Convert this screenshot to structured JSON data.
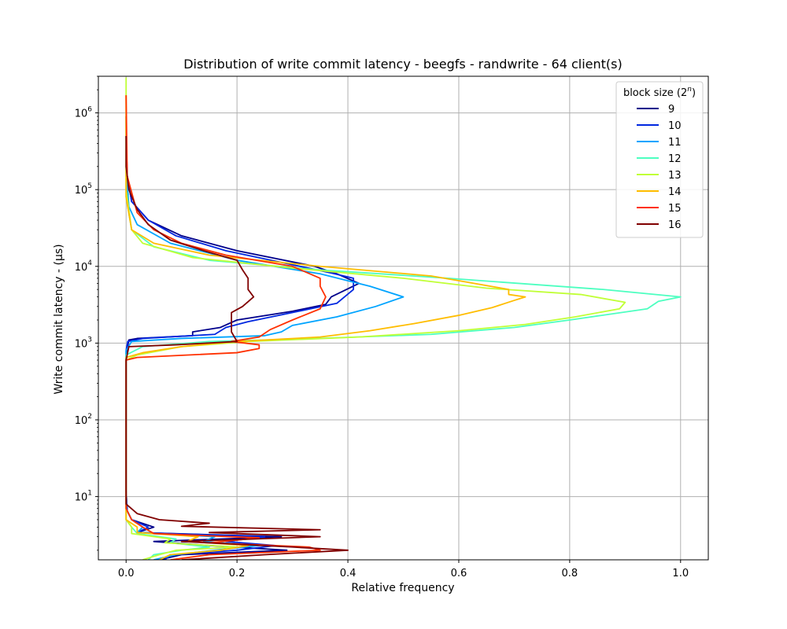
{
  "chart_data": {
    "type": "line",
    "title": "Distribution of write commit latency - beegfs - randwrite - 64 client(s)",
    "xlabel": "Relative frequency",
    "ylabel": "Write commit latency - (μs)",
    "yscale": "log",
    "xlim": [
      -0.05,
      1.05
    ],
    "ylim": [
      1.5,
      3000000
    ],
    "grid": true,
    "x_ticks": [
      0.0,
      0.2,
      0.4,
      0.6,
      0.8,
      1.0
    ],
    "x_tick_labels": [
      "0.0",
      "0.2",
      "0.4",
      "0.6",
      "0.8",
      "1.0"
    ],
    "y_ticks": [
      {
        "value": 10,
        "base": "10",
        "exp": "1"
      },
      {
        "value": 100,
        "base": "10",
        "exp": "2"
      },
      {
        "value": 1000,
        "base": "10",
        "exp": "3"
      },
      {
        "value": 10000,
        "base": "10",
        "exp": "4"
      },
      {
        "value": 100000,
        "base": "10",
        "exp": "5"
      },
      {
        "value": 1000000,
        "base": "10",
        "exp": "6"
      }
    ],
    "legend": {
      "title_prefix": "block size (2",
      "title_sup": "n",
      "title_suffix": ")",
      "location": "upper right"
    },
    "series": [
      {
        "name": "9",
        "color": "#00008b",
        "points": [
          [
            0.06,
            1.5
          ],
          [
            0.1,
            1.75
          ],
          [
            0.29,
            2.0
          ],
          [
            0.15,
            2.3
          ],
          [
            0.05,
            2.6
          ],
          [
            0.28,
            3.0
          ],
          [
            0.02,
            3.4
          ],
          [
            0.05,
            4.0
          ],
          [
            0.01,
            5.0
          ],
          [
            0.002,
            6.5
          ],
          [
            0.0,
            12
          ],
          [
            0.0,
            100
          ],
          [
            0.0,
            700
          ],
          [
            0.005,
            1100
          ],
          [
            0.02,
            1150
          ],
          [
            0.12,
            1250
          ],
          [
            0.12,
            1400
          ],
          [
            0.17,
            1600
          ],
          [
            0.2,
            2000
          ],
          [
            0.3,
            2600
          ],
          [
            0.36,
            3200
          ],
          [
            0.37,
            4000
          ],
          [
            0.42,
            6000
          ],
          [
            0.38,
            8000
          ],
          [
            0.34,
            10000
          ],
          [
            0.2,
            16000
          ],
          [
            0.1,
            25000
          ],
          [
            0.04,
            40000
          ],
          [
            0.01,
            70000
          ],
          [
            0.002,
            150000
          ],
          [
            0.0,
            500000
          ],
          [
            0.0,
            900000
          ]
        ]
      },
      {
        "name": "10",
        "color": "#0027e0",
        "points": [
          [
            0.07,
            1.5
          ],
          [
            0.08,
            1.75
          ],
          [
            0.2,
            2.0
          ],
          [
            0.27,
            2.3
          ],
          [
            0.18,
            2.6
          ],
          [
            0.25,
            3.0
          ],
          [
            0.02,
            3.4
          ],
          [
            0.04,
            4.0
          ],
          [
            0.01,
            5.0
          ],
          [
            0.002,
            6.5
          ],
          [
            0.0,
            12
          ],
          [
            0.0,
            100
          ],
          [
            0.0,
            800
          ],
          [
            0.003,
            1050
          ],
          [
            0.03,
            1150
          ],
          [
            0.16,
            1300
          ],
          [
            0.18,
            1600
          ],
          [
            0.22,
            1900
          ],
          [
            0.3,
            2500
          ],
          [
            0.38,
            3300
          ],
          [
            0.41,
            5000
          ],
          [
            0.41,
            7000
          ],
          [
            0.37,
            8200
          ],
          [
            0.3,
            10500
          ],
          [
            0.18,
            16000
          ],
          [
            0.09,
            25000
          ],
          [
            0.04,
            40000
          ],
          [
            0.01,
            70000
          ],
          [
            0.002,
            150000
          ],
          [
            0.0,
            500000
          ]
        ]
      },
      {
        "name": "11",
        "color": "#00a4ff",
        "points": [
          [
            0.05,
            1.5
          ],
          [
            0.09,
            1.75
          ],
          [
            0.16,
            2.0
          ],
          [
            0.24,
            2.3
          ],
          [
            0.14,
            2.6
          ],
          [
            0.16,
            3.0
          ],
          [
            0.02,
            3.4
          ],
          [
            0.03,
            4.0
          ],
          [
            0.01,
            5.0
          ],
          [
            0.0,
            7
          ],
          [
            0.0,
            100
          ],
          [
            0.0,
            800
          ],
          [
            0.01,
            1050
          ],
          [
            0.1,
            1150
          ],
          [
            0.25,
            1250
          ],
          [
            0.28,
            1400
          ],
          [
            0.3,
            1700
          ],
          [
            0.38,
            2200
          ],
          [
            0.45,
            3000
          ],
          [
            0.5,
            4000
          ],
          [
            0.44,
            5500
          ],
          [
            0.35,
            8000
          ],
          [
            0.2,
            12000
          ],
          [
            0.08,
            20000
          ],
          [
            0.02,
            35000
          ],
          [
            0.005,
            60000
          ],
          [
            0.0,
            200000
          ]
        ]
      },
      {
        "name": "12",
        "color": "#4dffc0",
        "points": [
          [
            0.04,
            1.5
          ],
          [
            0.05,
            1.75
          ],
          [
            0.1,
            2.0
          ],
          [
            0.15,
            2.2
          ],
          [
            0.08,
            2.5
          ],
          [
            0.09,
            2.8
          ],
          [
            0.02,
            3.3
          ],
          [
            0.01,
            4.0
          ],
          [
            0.0,
            5
          ],
          [
            0.0,
            100
          ],
          [
            0.0,
            700
          ],
          [
            0.03,
            900
          ],
          [
            0.15,
            1050
          ],
          [
            0.3,
            1120
          ],
          [
            0.55,
            1300
          ],
          [
            0.7,
            1600
          ],
          [
            0.8,
            2000
          ],
          [
            0.94,
            2800
          ],
          [
            0.96,
            3500
          ],
          [
            1.0,
            4000
          ],
          [
            0.86,
            5000
          ],
          [
            0.58,
            7000
          ],
          [
            0.35,
            9000
          ],
          [
            0.15,
            12000
          ],
          [
            0.05,
            18000
          ],
          [
            0.01,
            30000
          ],
          [
            0.0,
            80000
          ],
          [
            0.0,
            500000
          ]
        ]
      },
      {
        "name": "13",
        "color": "#c0ff36",
        "points": [
          [
            0.03,
            1.5
          ],
          [
            0.06,
            1.75
          ],
          [
            0.09,
            2.0
          ],
          [
            0.2,
            2.2
          ],
          [
            0.07,
            2.5
          ],
          [
            0.08,
            2.8
          ],
          [
            0.01,
            3.3
          ],
          [
            0.01,
            4.0
          ],
          [
            0.0,
            5
          ],
          [
            0.0,
            100
          ],
          [
            0.0,
            600
          ],
          [
            0.02,
            700
          ],
          [
            0.1,
            900
          ],
          [
            0.22,
            1050
          ],
          [
            0.42,
            1200
          ],
          [
            0.6,
            1450
          ],
          [
            0.72,
            1750
          ],
          [
            0.81,
            2200
          ],
          [
            0.89,
            2800
          ],
          [
            0.9,
            3400
          ],
          [
            0.82,
            4300
          ],
          [
            0.65,
            5200
          ],
          [
            0.5,
            7000
          ],
          [
            0.3,
            9500
          ],
          [
            0.12,
            13000
          ],
          [
            0.03,
            20000
          ],
          [
            0.01,
            30000
          ],
          [
            0.0,
            100000
          ],
          [
            0.0,
            2900000
          ]
        ]
      },
      {
        "name": "14",
        "color": "#ffbd00",
        "points": [
          [
            0.06,
            1.5
          ],
          [
            0.08,
            1.75
          ],
          [
            0.17,
            2.0
          ],
          [
            0.22,
            2.3
          ],
          [
            0.11,
            2.6
          ],
          [
            0.13,
            3.0
          ],
          [
            0.02,
            3.4
          ],
          [
            0.02,
            4.0
          ],
          [
            0.0,
            5
          ],
          [
            0.0,
            100
          ],
          [
            0.0,
            650
          ],
          [
            0.03,
            750
          ],
          [
            0.1,
            900
          ],
          [
            0.2,
            1050
          ],
          [
            0.35,
            1200
          ],
          [
            0.44,
            1450
          ],
          [
            0.52,
            1800
          ],
          [
            0.6,
            2300
          ],
          [
            0.66,
            2900
          ],
          [
            0.7,
            3600
          ],
          [
            0.72,
            4000
          ],
          [
            0.69,
            4300
          ],
          [
            0.69,
            5000
          ],
          [
            0.6,
            6500
          ],
          [
            0.55,
            7500
          ],
          [
            0.35,
            10000
          ],
          [
            0.15,
            14000
          ],
          [
            0.05,
            20000
          ],
          [
            0.01,
            30000
          ],
          [
            0.0,
            80000
          ],
          [
            0.0,
            1700000
          ]
        ]
      },
      {
        "name": "15",
        "color": "#ff3000",
        "points": [
          [
            0.08,
            1.5
          ],
          [
            0.15,
            1.75
          ],
          [
            0.35,
            2.0
          ],
          [
            0.33,
            2.2
          ],
          [
            0.15,
            2.5
          ],
          [
            0.24,
            2.9
          ],
          [
            0.05,
            3.3
          ],
          [
            0.03,
            4.0
          ],
          [
            0.01,
            5.0
          ],
          [
            0.0,
            7
          ],
          [
            0.0,
            100
          ],
          [
            0.0,
            600
          ],
          [
            0.02,
            650
          ],
          [
            0.2,
            750
          ],
          [
            0.24,
            850
          ],
          [
            0.24,
            950
          ],
          [
            0.19,
            1050
          ],
          [
            0.24,
            1200
          ],
          [
            0.26,
            1500
          ],
          [
            0.3,
            2000
          ],
          [
            0.35,
            2800
          ],
          [
            0.36,
            4000
          ],
          [
            0.35,
            5500
          ],
          [
            0.35,
            7000
          ],
          [
            0.3,
            10000
          ],
          [
            0.18,
            14000
          ],
          [
            0.1,
            20000
          ],
          [
            0.05,
            30000
          ],
          [
            0.02,
            50000
          ],
          [
            0.002,
            150000
          ],
          [
            0.0,
            1700000
          ]
        ]
      },
      {
        "name": "16",
        "color": "#800000",
        "points": [
          [
            0.1,
            1.5
          ],
          [
            0.25,
            1.75
          ],
          [
            0.4,
            2.0
          ],
          [
            0.3,
            2.2
          ],
          [
            0.1,
            2.6
          ],
          [
            0.35,
            3.0
          ],
          [
            0.15,
            3.4
          ],
          [
            0.35,
            3.7
          ],
          [
            0.1,
            4.1
          ],
          [
            0.15,
            4.5
          ],
          [
            0.06,
            5.0
          ],
          [
            0.02,
            6.0
          ],
          [
            0.0,
            8.0
          ],
          [
            0.0,
            12
          ],
          [
            0.0,
            100
          ],
          [
            0.0,
            600
          ],
          [
            0.005,
            900
          ],
          [
            0.09,
            950
          ],
          [
            0.2,
            1050
          ],
          [
            0.19,
            1400
          ],
          [
            0.19,
            1900
          ],
          [
            0.19,
            2500
          ],
          [
            0.21,
            3000
          ],
          [
            0.23,
            4000
          ],
          [
            0.22,
            5000
          ],
          [
            0.22,
            7000
          ],
          [
            0.21,
            9000
          ],
          [
            0.2,
            12000
          ],
          [
            0.14,
            16000
          ],
          [
            0.08,
            22000
          ],
          [
            0.04,
            35000
          ],
          [
            0.02,
            55000
          ],
          [
            0.005,
            100000
          ],
          [
            0.0,
            200000
          ],
          [
            0.0,
            500000
          ]
        ]
      }
    ]
  }
}
